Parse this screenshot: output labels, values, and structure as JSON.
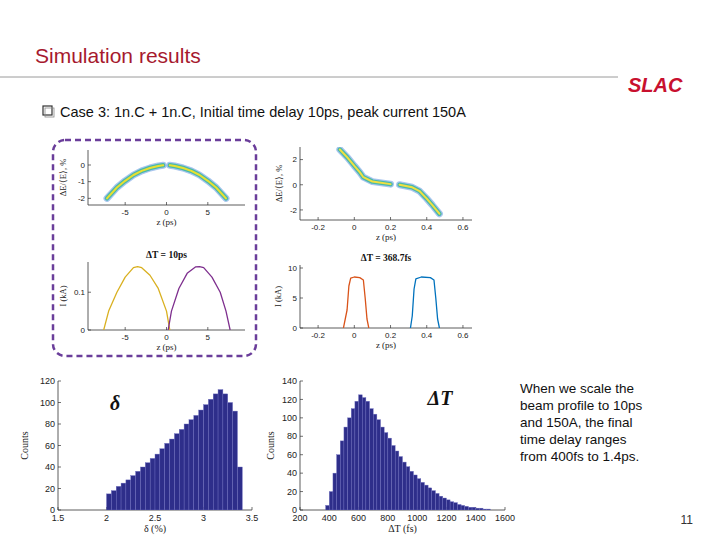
{
  "slide": {
    "title": "Simulation results",
    "logo": "SLAC",
    "bullet": "Case 3: 1n.C + 1n.C, Initial time delay 10ps,  peak current 150A",
    "note": [
      "When we scale the",
      "beam profile to 10ps",
      "and 150A, the final",
      "time delay ranges",
      "from 400fs to 1.4ps."
    ],
    "page": "11"
  },
  "chart_data": [
    {
      "type": "density",
      "xlabel": "z (ps)",
      "ylabel": "ΔE/⟨E⟩, %",
      "xlim": [
        -9.5,
        9.5
      ],
      "ylim": [
        -2.4,
        0.9
      ],
      "xticks": [
        -5,
        0,
        5
      ],
      "yticks": [
        -2,
        -1,
        0
      ],
      "series": [
        {
          "color": "#e8e030",
          "x": [
            -7.2,
            -6,
            -5,
            -4,
            -3,
            -2,
            -1,
            -0.4
          ],
          "values": [
            -2.0,
            -1.35,
            -0.95,
            -0.6,
            -0.35,
            -0.18,
            -0.06,
            -0.02
          ]
        },
        {
          "color": "#e8e030",
          "x": [
            0.4,
            1,
            2,
            3,
            4,
            5,
            6,
            7.2
          ],
          "values": [
            -0.02,
            -0.06,
            -0.18,
            -0.35,
            -0.6,
            -0.95,
            -1.35,
            -2.0
          ]
        }
      ]
    },
    {
      "type": "density",
      "xlabel": "z (ps)",
      "ylabel": "ΔE/⟨E⟩, %",
      "xlim": [
        -0.3,
        0.65
      ],
      "ylim": [
        -2.8,
        3
      ],
      "xticks": [
        -0.2,
        0,
        0.2,
        0.4,
        0.6
      ],
      "yticks": [
        -2,
        0,
        2
      ],
      "series": [
        {
          "color": "#f0e040",
          "x": [
            -0.08,
            -0.04,
            0,
            0.03,
            0.05,
            0.1,
            0.2
          ],
          "values": [
            2.8,
            2.2,
            1.5,
            1.0,
            0.6,
            0.25,
            0.05
          ]
        },
        {
          "color": "#f0e040",
          "x": [
            0.25,
            0.32,
            0.36,
            0.38,
            0.4,
            0.43,
            0.47
          ],
          "values": [
            0.0,
            -0.2,
            -0.5,
            -0.8,
            -1.1,
            -1.6,
            -2.3
          ]
        }
      ]
    },
    {
      "type": "line",
      "title": "ΔT = 10ps",
      "xlabel": "z (ps)",
      "ylabel": "I (kA)",
      "xlim": [
        -9.5,
        9.5
      ],
      "ylim": [
        0,
        0.18
      ],
      "xticks": [
        -5,
        0,
        5
      ],
      "yticks": [
        0,
        0.1
      ],
      "series": [
        {
          "color": "#d9b020",
          "x": [
            -7.6,
            -7,
            -6,
            -5,
            -4,
            -3.5,
            -3,
            -2,
            -1,
            0,
            0.4
          ],
          "values": [
            0,
            0.05,
            0.1,
            0.14,
            0.165,
            0.168,
            0.165,
            0.145,
            0.11,
            0.05,
            0
          ]
        },
        {
          "color": "#7e2f8e",
          "x": [
            0.2,
            0.6,
            1.5,
            2.5,
            3.5,
            4,
            4.5,
            5.5,
            6.5,
            7.2,
            7.7
          ],
          "values": [
            0,
            0.05,
            0.11,
            0.15,
            0.167,
            0.168,
            0.165,
            0.14,
            0.1,
            0.05,
            0
          ]
        }
      ]
    },
    {
      "type": "line",
      "title": "ΔT = 368.7fs",
      "xlabel": "z (ps)",
      "ylabel": "I (kA)",
      "xlim": [
        -0.3,
        0.65
      ],
      "ylim": [
        0,
        10.5
      ],
      "xticks": [
        -0.2,
        0,
        0.2,
        0.4,
        0.6
      ],
      "yticks": [
        0,
        5,
        10
      ],
      "series": [
        {
          "color": "#d95319",
          "x": [
            -0.06,
            -0.04,
            -0.03,
            -0.02,
            0,
            0.03,
            0.05,
            0.06,
            0.07,
            0.08
          ],
          "values": [
            0,
            3,
            7,
            8.3,
            8.5,
            8.4,
            8.0,
            5,
            1.5,
            0
          ]
        },
        {
          "color": "#0072bd",
          "x": [
            0.31,
            0.32,
            0.33,
            0.34,
            0.37,
            0.42,
            0.44,
            0.45,
            0.46,
            0.47
          ],
          "values": [
            0,
            2,
            6.5,
            8.2,
            8.5,
            8.4,
            8.0,
            5,
            1.5,
            0
          ]
        }
      ]
    },
    {
      "type": "histogram",
      "xlabel": "δ (%)",
      "ylabel": "Counts",
      "color": "#2e2e8a",
      "xlim": [
        1.5,
        3.5
      ],
      "ylim": [
        0,
        120
      ],
      "xticks": [
        1.5,
        2,
        2.5,
        3,
        3.5
      ],
      "yticks": [
        0,
        20,
        40,
        60,
        80,
        100,
        120
      ],
      "bins": [
        2,
        2.05,
        2.1,
        2.15,
        2.2,
        2.25,
        2.3,
        2.35,
        2.4,
        2.45,
        2.5,
        2.55,
        2.6,
        2.65,
        2.7,
        2.75,
        2.8,
        2.85,
        2.9,
        2.95,
        3,
        3.05,
        3.1,
        3.15,
        3.2,
        3.25,
        3.3,
        3.35,
        3.4
      ],
      "counts": [
        15,
        18,
        22,
        25,
        28,
        32,
        36,
        40,
        44,
        48,
        52,
        57,
        62,
        66,
        71,
        75,
        80,
        84,
        88,
        93,
        98,
        103,
        108,
        112,
        108,
        100,
        92,
        40
      ],
      "annotation": {
        "text": "δ",
        "x": 2.09,
        "y": 93
      }
    },
    {
      "type": "histogram",
      "xlabel": "ΔT (fs)",
      "ylabel": "Counts",
      "color": "#2e2e8a",
      "xlim": [
        200,
        1600
      ],
      "ylim": [
        0,
        140
      ],
      "xticks": [
        200,
        400,
        600,
        800,
        1000,
        1200,
        1400,
        1600
      ],
      "yticks": [
        0,
        20,
        40,
        60,
        80,
        100,
        120,
        140
      ],
      "bins": [
        375,
        400,
        425,
        450,
        475,
        500,
        525,
        550,
        575,
        600,
        625,
        650,
        675,
        700,
        725,
        750,
        775,
        800,
        825,
        850,
        875,
        900,
        925,
        950,
        975,
        1000,
        1025,
        1050,
        1075,
        1100,
        1125,
        1150,
        1175,
        1200,
        1225,
        1250,
        1275,
        1300,
        1325,
        1350,
        1375,
        1400,
        1425,
        1450,
        1475,
        1500
      ],
      "counts": [
        5,
        20,
        40,
        60,
        75,
        90,
        100,
        110,
        118,
        125,
        122,
        118,
        110,
        104,
        98,
        90,
        84,
        78,
        70,
        64,
        58,
        52,
        47,
        42,
        38,
        34,
        30,
        27,
        24,
        21,
        18,
        15,
        13,
        11,
        9,
        8,
        6,
        5,
        4,
        3,
        3,
        2,
        2,
        1,
        1
      ],
      "annotation": {
        "text": "ΔT",
        "x": 1156,
        "y": 114
      }
    }
  ]
}
